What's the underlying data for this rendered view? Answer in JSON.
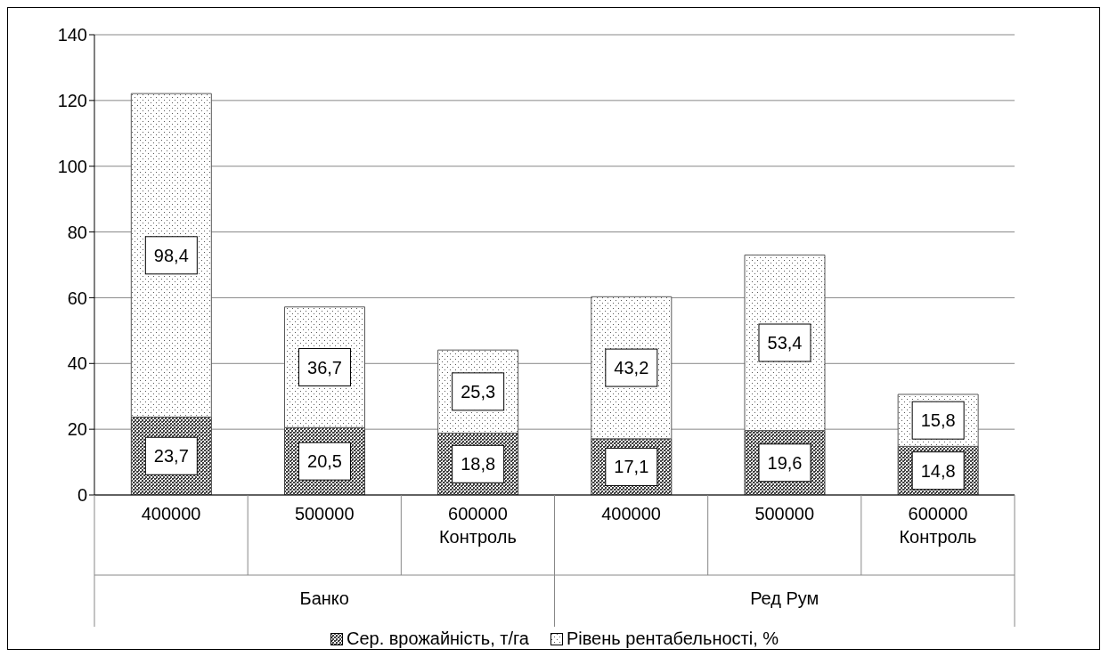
{
  "chart_data": {
    "type": "bar",
    "stacked": true,
    "categories": [
      "400000",
      "500000",
      "600000\nКонтроль",
      "400000",
      "500000",
      "600000\nКонтроль"
    ],
    "series": [
      {
        "name": "Сер. врожайність, т/га",
        "color": "#404040",
        "values": [
          23.7,
          20.5,
          18.8,
          17.1,
          19.6,
          14.8
        ],
        "value_labels": [
          "23,7",
          "20,5",
          "18,8",
          "17,1",
          "19,6",
          "14,8"
        ]
      },
      {
        "name": "Рівень рентабельності, %",
        "color": "#595959",
        "values": [
          98.4,
          36.7,
          25.3,
          43.2,
          53.4,
          15.8
        ],
        "value_labels": [
          "98,4",
          "36,7",
          "25,3",
          "43,2",
          "53,4",
          "15,8"
        ]
      }
    ],
    "annotations": [
      "Банко",
      "Ред Рум"
    ],
    "ylim": [
      0,
      140
    ],
    "yticks": [
      0,
      20,
      40,
      60,
      80,
      100,
      120,
      140
    ],
    "grid": "y",
    "legend": "bottom"
  }
}
